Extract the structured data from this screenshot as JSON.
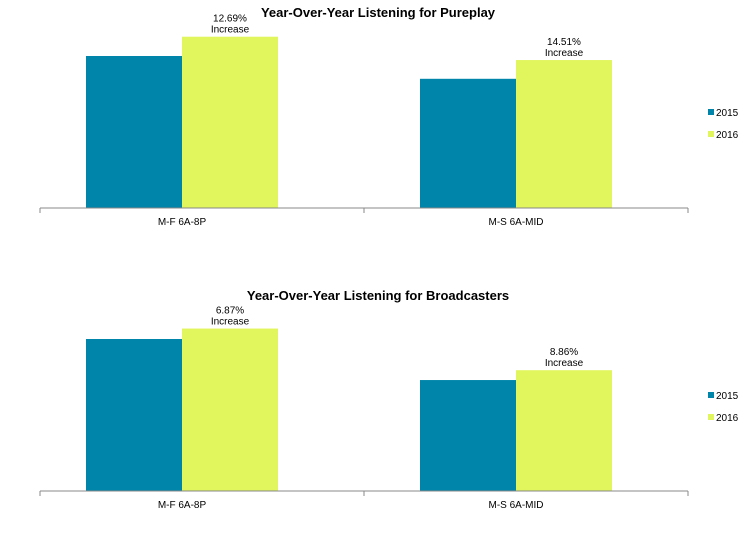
{
  "chart_data": [
    {
      "type": "bar",
      "title": "Year-Over-Year Listening for Pureplay",
      "categories": [
        "M-F 6A-8P",
        "M-S 6A-MID"
      ],
      "series": [
        {
          "name": "2015",
          "color": "#0085aa",
          "values": [
            100,
            85
          ]
        },
        {
          "name": "2016",
          "color": "#e1f55c",
          "values": [
            112.69,
            97.33
          ]
        }
      ],
      "annotations": [
        {
          "category": "M-F 6A-8P",
          "line1": "12.69%",
          "line2": "Increase"
        },
        {
          "category": "M-S 6A-MID",
          "line1": "14.51%",
          "line2": "Increase"
        }
      ],
      "ylim": [
        0,
        125
      ],
      "legend": "right"
    },
    {
      "type": "bar",
      "title": "Year-Over-Year Listening for Broadcasters",
      "categories": [
        "M-F 6A-8P",
        "M-S 6A-MID"
      ],
      "series": [
        {
          "name": "2015",
          "color": "#0085aa",
          "values": [
            100,
            73
          ]
        },
        {
          "name": "2016",
          "color": "#e1f55c",
          "values": [
            106.87,
            79.47
          ]
        }
      ],
      "annotations": [
        {
          "category": "M-F 6A-8P",
          "line1": "6.87%",
          "line2": "Increase"
        },
        {
          "category": "M-S 6A-MID",
          "line1": "8.86%",
          "line2": "Increase"
        }
      ],
      "ylim": [
        0,
        125
      ],
      "legend": "right"
    }
  ]
}
